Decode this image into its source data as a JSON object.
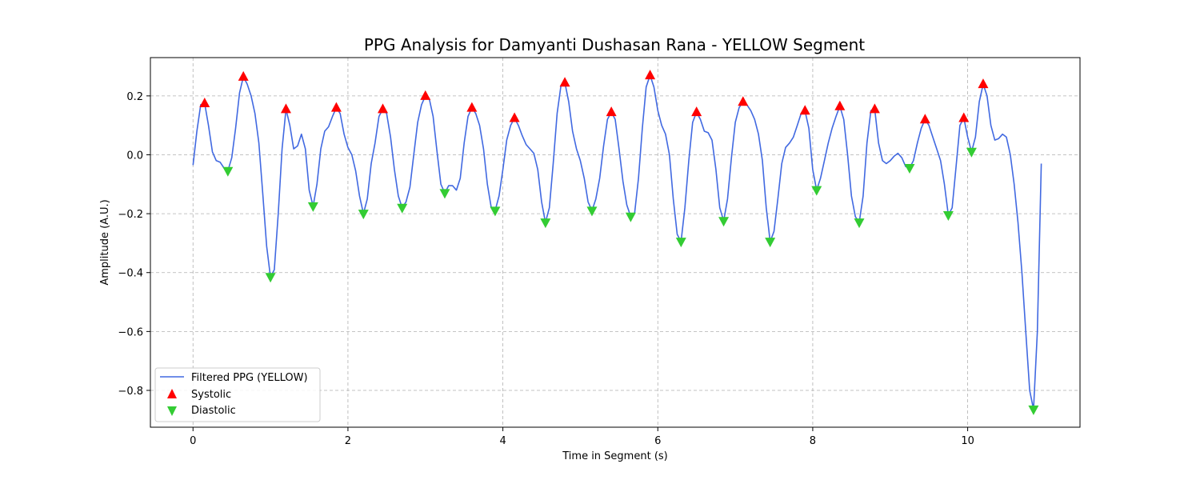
{
  "chart_data": {
    "type": "line",
    "title": "PPG Analysis for Damyanti Dushasan Rana - YELLOW Segment",
    "xlabel": "Time in Segment (s)",
    "ylabel": "Amplitude (A.U.)",
    "xlim": [
      -0.55,
      11.45
    ],
    "ylim": [
      -0.925,
      0.33
    ],
    "xticks": [
      0,
      2,
      4,
      6,
      8,
      10
    ],
    "yticks": [
      -0.8,
      -0.6,
      -0.4,
      -0.2,
      0.0,
      0.2
    ],
    "xtick_labels": [
      "0",
      "2",
      "4",
      "6",
      "8",
      "10"
    ],
    "ytick_labels": [
      "−0.8",
      "−0.6",
      "−0.4",
      "−0.2",
      "0.0",
      "0.2"
    ],
    "grid": true,
    "legend_position": "lower-left",
    "colors": {
      "line": "#4169e1",
      "systolic": "#ff0000",
      "diastolic": "#33cc33"
    },
    "series": [
      {
        "name": "Filtered PPG (YELLOW)",
        "kind": "line",
        "points": [
          [
            0.0,
            -0.035
          ],
          [
            0.05,
            0.08
          ],
          [
            0.1,
            0.17
          ],
          [
            0.15,
            0.175
          ],
          [
            0.2,
            0.1
          ],
          [
            0.25,
            0.01
          ],
          [
            0.3,
            -0.02
          ],
          [
            0.35,
            -0.025
          ],
          [
            0.4,
            -0.045
          ],
          [
            0.45,
            -0.055
          ],
          [
            0.5,
            -0.01
          ],
          [
            0.55,
            0.09
          ],
          [
            0.6,
            0.21
          ],
          [
            0.65,
            0.265
          ],
          [
            0.7,
            0.24
          ],
          [
            0.75,
            0.2
          ],
          [
            0.8,
            0.14
          ],
          [
            0.85,
            0.04
          ],
          [
            0.9,
            -0.13
          ],
          [
            0.95,
            -0.31
          ],
          [
            1.0,
            -0.415
          ],
          [
            1.05,
            -0.39
          ],
          [
            1.1,
            -0.2
          ],
          [
            1.15,
            0.02
          ],
          [
            1.2,
            0.155
          ],
          [
            1.25,
            0.1
          ],
          [
            1.3,
            0.02
          ],
          [
            1.35,
            0.03
          ],
          [
            1.4,
            0.07
          ],
          [
            1.45,
            0.02
          ],
          [
            1.5,
            -0.12
          ],
          [
            1.55,
            -0.175
          ],
          [
            1.6,
            -0.1
          ],
          [
            1.65,
            0.02
          ],
          [
            1.7,
            0.08
          ],
          [
            1.75,
            0.095
          ],
          [
            1.8,
            0.13
          ],
          [
            1.85,
            0.16
          ],
          [
            1.9,
            0.14
          ],
          [
            1.95,
            0.07
          ],
          [
            2.0,
            0.025
          ],
          [
            2.05,
            0.0
          ],
          [
            2.1,
            -0.055
          ],
          [
            2.15,
            -0.14
          ],
          [
            2.2,
            -0.2
          ],
          [
            2.25,
            -0.15
          ],
          [
            2.3,
            -0.03
          ],
          [
            2.35,
            0.04
          ],
          [
            2.4,
            0.13
          ],
          [
            2.45,
            0.155
          ],
          [
            2.5,
            0.14
          ],
          [
            2.55,
            0.06
          ],
          [
            2.6,
            -0.05
          ],
          [
            2.65,
            -0.14
          ],
          [
            2.7,
            -0.18
          ],
          [
            2.75,
            -0.16
          ],
          [
            2.8,
            -0.11
          ],
          [
            2.85,
            0.0
          ],
          [
            2.9,
            0.11
          ],
          [
            2.95,
            0.17
          ],
          [
            3.0,
            0.2
          ],
          [
            3.05,
            0.19
          ],
          [
            3.1,
            0.13
          ],
          [
            3.15,
            0.01
          ],
          [
            3.2,
            -0.1
          ],
          [
            3.25,
            -0.13
          ],
          [
            3.3,
            -0.105
          ],
          [
            3.35,
            -0.105
          ],
          [
            3.4,
            -0.12
          ],
          [
            3.45,
            -0.08
          ],
          [
            3.5,
            0.04
          ],
          [
            3.55,
            0.13
          ],
          [
            3.6,
            0.16
          ],
          [
            3.65,
            0.14
          ],
          [
            3.7,
            0.1
          ],
          [
            3.75,
            0.02
          ],
          [
            3.8,
            -0.1
          ],
          [
            3.85,
            -0.18
          ],
          [
            3.9,
            -0.19
          ],
          [
            3.95,
            -0.14
          ],
          [
            4.0,
            -0.05
          ],
          [
            4.05,
            0.05
          ],
          [
            4.1,
            0.1
          ],
          [
            4.15,
            0.125
          ],
          [
            4.2,
            0.1
          ],
          [
            4.25,
            0.065
          ],
          [
            4.3,
            0.035
          ],
          [
            4.35,
            0.02
          ],
          [
            4.4,
            0.005
          ],
          [
            4.45,
            -0.05
          ],
          [
            4.5,
            -0.16
          ],
          [
            4.55,
            -0.23
          ],
          [
            4.6,
            -0.18
          ],
          [
            4.65,
            -0.03
          ],
          [
            4.7,
            0.14
          ],
          [
            4.75,
            0.235
          ],
          [
            4.8,
            0.245
          ],
          [
            4.85,
            0.18
          ],
          [
            4.9,
            0.08
          ],
          [
            4.95,
            0.02
          ],
          [
            5.0,
            -0.02
          ],
          [
            5.05,
            -0.08
          ],
          [
            5.1,
            -0.16
          ],
          [
            5.15,
            -0.19
          ],
          [
            5.2,
            -0.15
          ],
          [
            5.25,
            -0.08
          ],
          [
            5.3,
            0.03
          ],
          [
            5.35,
            0.12
          ],
          [
            5.4,
            0.145
          ],
          [
            5.45,
            0.12
          ],
          [
            5.5,
            0.02
          ],
          [
            5.55,
            -0.09
          ],
          [
            5.6,
            -0.17
          ],
          [
            5.65,
            -0.21
          ],
          [
            5.7,
            -0.2
          ],
          [
            5.75,
            -0.08
          ],
          [
            5.8,
            0.09
          ],
          [
            5.85,
            0.23
          ],
          [
            5.9,
            0.27
          ],
          [
            5.95,
            0.23
          ],
          [
            6.0,
            0.15
          ],
          [
            6.05,
            0.1
          ],
          [
            6.1,
            0.07
          ],
          [
            6.15,
            0.0
          ],
          [
            6.2,
            -0.15
          ],
          [
            6.25,
            -0.27
          ],
          [
            6.3,
            -0.295
          ],
          [
            6.35,
            -0.18
          ],
          [
            6.4,
            -0.02
          ],
          [
            6.45,
            0.11
          ],
          [
            6.5,
            0.145
          ],
          [
            6.55,
            0.12
          ],
          [
            6.6,
            0.08
          ],
          [
            6.65,
            0.075
          ],
          [
            6.7,
            0.05
          ],
          [
            6.75,
            -0.05
          ],
          [
            6.8,
            -0.18
          ],
          [
            6.85,
            -0.225
          ],
          [
            6.9,
            -0.15
          ],
          [
            6.95,
            -0.01
          ],
          [
            7.0,
            0.11
          ],
          [
            7.05,
            0.16
          ],
          [
            7.1,
            0.18
          ],
          [
            7.15,
            0.17
          ],
          [
            7.2,
            0.15
          ],
          [
            7.25,
            0.12
          ],
          [
            7.3,
            0.07
          ],
          [
            7.35,
            -0.02
          ],
          [
            7.4,
            -0.18
          ],
          [
            7.45,
            -0.295
          ],
          [
            7.5,
            -0.26
          ],
          [
            7.55,
            -0.15
          ],
          [
            7.6,
            -0.03
          ],
          [
            7.65,
            0.025
          ],
          [
            7.7,
            0.04
          ],
          [
            7.75,
            0.06
          ],
          [
            7.8,
            0.1
          ],
          [
            7.85,
            0.14
          ],
          [
            7.9,
            0.15
          ],
          [
            7.95,
            0.09
          ],
          [
            8.0,
            -0.05
          ],
          [
            8.05,
            -0.12
          ],
          [
            8.1,
            -0.08
          ],
          [
            8.15,
            -0.02
          ],
          [
            8.2,
            0.04
          ],
          [
            8.25,
            0.09
          ],
          [
            8.3,
            0.13
          ],
          [
            8.35,
            0.165
          ],
          [
            8.4,
            0.12
          ],
          [
            8.45,
            0.0
          ],
          [
            8.5,
            -0.14
          ],
          [
            8.55,
            -0.21
          ],
          [
            8.6,
            -0.23
          ],
          [
            8.65,
            -0.14
          ],
          [
            8.7,
            0.04
          ],
          [
            8.75,
            0.15
          ],
          [
            8.8,
            0.155
          ],
          [
            8.85,
            0.04
          ],
          [
            8.9,
            -0.02
          ],
          [
            8.95,
            -0.03
          ],
          [
            9.0,
            -0.02
          ],
          [
            9.05,
            -0.005
          ],
          [
            9.1,
            0.005
          ],
          [
            9.15,
            -0.01
          ],
          [
            9.2,
            -0.04
          ],
          [
            9.25,
            -0.045
          ],
          [
            9.3,
            -0.02
          ],
          [
            9.35,
            0.04
          ],
          [
            9.4,
            0.09
          ],
          [
            9.45,
            0.12
          ],
          [
            9.5,
            0.1
          ],
          [
            9.55,
            0.06
          ],
          [
            9.6,
            0.02
          ],
          [
            9.65,
            -0.02
          ],
          [
            9.7,
            -0.1
          ],
          [
            9.75,
            -0.205
          ],
          [
            9.8,
            -0.18
          ],
          [
            9.85,
            -0.04
          ],
          [
            9.9,
            0.1
          ],
          [
            9.95,
            0.125
          ],
          [
            10.0,
            0.06
          ],
          [
            10.05,
            0.01
          ],
          [
            10.1,
            0.06
          ],
          [
            10.15,
            0.18
          ],
          [
            10.2,
            0.24
          ],
          [
            10.25,
            0.2
          ],
          [
            10.3,
            0.1
          ],
          [
            10.35,
            0.05
          ],
          [
            10.4,
            0.055
          ],
          [
            10.45,
            0.07
          ],
          [
            10.5,
            0.06
          ],
          [
            10.55,
            0.0
          ],
          [
            10.6,
            -0.1
          ],
          [
            10.65,
            -0.23
          ],
          [
            10.7,
            -0.4
          ],
          [
            10.75,
            -0.6
          ],
          [
            10.8,
            -0.8
          ],
          [
            10.85,
            -0.865
          ],
          [
            10.9,
            -0.6
          ],
          [
            10.95,
            -0.03
          ]
        ]
      },
      {
        "name": "Systolic",
        "kind": "marker-up",
        "points": [
          [
            0.15,
            0.175
          ],
          [
            0.65,
            0.265
          ],
          [
            1.2,
            0.155
          ],
          [
            1.85,
            0.16
          ],
          [
            2.45,
            0.155
          ],
          [
            3.0,
            0.2
          ],
          [
            3.6,
            0.16
          ],
          [
            4.15,
            0.125
          ],
          [
            4.8,
            0.245
          ],
          [
            5.4,
            0.145
          ],
          [
            5.9,
            0.27
          ],
          [
            6.5,
            0.145
          ],
          [
            7.1,
            0.18
          ],
          [
            7.9,
            0.15
          ],
          [
            8.35,
            0.165
          ],
          [
            8.8,
            0.155
          ],
          [
            9.45,
            0.12
          ],
          [
            9.95,
            0.125
          ],
          [
            10.2,
            0.24
          ]
        ]
      },
      {
        "name": "Diastolic",
        "kind": "marker-down",
        "points": [
          [
            0.45,
            -0.055
          ],
          [
            1.0,
            -0.415
          ],
          [
            1.55,
            -0.175
          ],
          [
            2.2,
            -0.2
          ],
          [
            2.7,
            -0.18
          ],
          [
            3.25,
            -0.13
          ],
          [
            3.9,
            -0.19
          ],
          [
            4.55,
            -0.23
          ],
          [
            5.15,
            -0.19
          ],
          [
            5.65,
            -0.21
          ],
          [
            6.3,
            -0.295
          ],
          [
            6.85,
            -0.225
          ],
          [
            7.45,
            -0.295
          ],
          [
            8.05,
            -0.12
          ],
          [
            8.6,
            -0.23
          ],
          [
            9.25,
            -0.045
          ],
          [
            9.75,
            -0.205
          ],
          [
            10.05,
            0.01
          ],
          [
            10.85,
            -0.865
          ]
        ]
      }
    ]
  }
}
